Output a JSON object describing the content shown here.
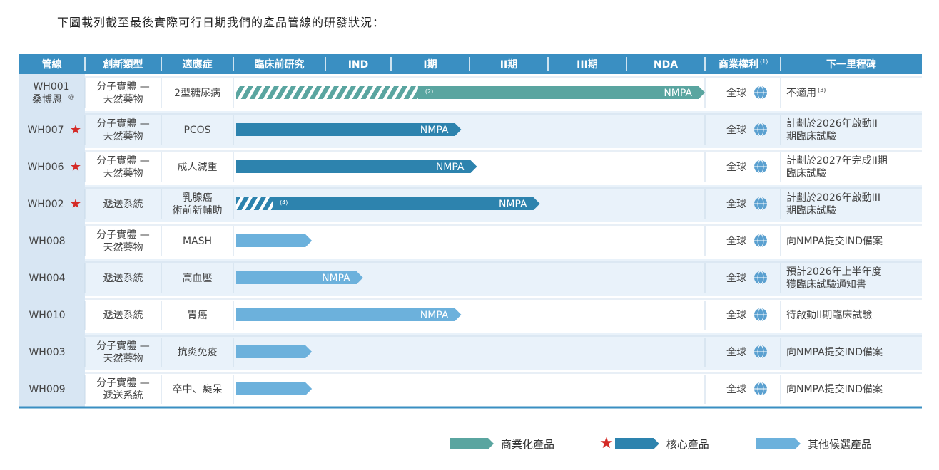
{
  "intro_text": "下圖載列截至最後實際可行日期我們的產品管線的研發狀況：",
  "colors": {
    "header": "#3a8fc2",
    "commercial": "#5aa5a0",
    "core": "#2d83ae",
    "other": "#6cb1dc",
    "rowA": "#ffffff",
    "rowB": "#e9f2fa",
    "leftCol": "#d8e6f3",
    "star": "#d42a26"
  },
  "chart_data": {
    "type": "table",
    "columns": [
      {
        "label": "管線"
      },
      {
        "label": "創新類型"
      },
      {
        "label": "適應症"
      },
      {
        "label": "臨床前研究"
      },
      {
        "label": "IND"
      },
      {
        "label": "I期"
      },
      {
        "label": "II期"
      },
      {
        "label": "III期"
      },
      {
        "label": "NDA"
      },
      {
        "label": "商業權利",
        "sup": "(1)"
      },
      {
        "label": "下一里程碑"
      }
    ],
    "rows": [
      {
        "code": "WH001",
        "code2": "桑博恩",
        "code2_sup": "@",
        "core": false,
        "type": [
          "分子實體 —",
          "天然藥物"
        ],
        "indication": [
          "2型糖尿病"
        ],
        "category": "commercial",
        "progress": 6.0,
        "hatch_end": 2.35,
        "note": "(2)",
        "bar_label": "NMPA",
        "rights": "全球",
        "milestone": [
          "不適用"
        ],
        "milestone_sup": "(3)"
      },
      {
        "code": "WH007",
        "core": true,
        "type": [
          "分子實體 —",
          "天然藥物"
        ],
        "indication": [
          "PCOS"
        ],
        "category": "core",
        "progress": 2.9,
        "bar_label": "NMPA",
        "rights": "全球",
        "milestone": [
          "計劃於2026年啟動II",
          "期臨床試驗"
        ]
      },
      {
        "code": "WH006",
        "core": true,
        "type": [
          "分子實體 —",
          "天然藥物"
        ],
        "indication": [
          "成人減重"
        ],
        "category": "core",
        "progress": 3.1,
        "bar_label": "NMPA",
        "rights": "全球",
        "milestone": [
          "計劃於2027年完成II期",
          "臨床試驗"
        ]
      },
      {
        "code": "WH002",
        "core": true,
        "type": [
          "遞送系統"
        ],
        "indication": [
          "乳腺癌",
          "術前新輔助"
        ],
        "category": "core",
        "progress": 3.9,
        "hatch_end": 0.5,
        "note": "(4)",
        "bar_label": "NMPA",
        "rights": "全球",
        "milestone": [
          "計劃於2026年啟動III",
          "期臨床試驗"
        ]
      },
      {
        "code": "WH008",
        "core": false,
        "type": [
          "分子實體 —",
          "天然藥物"
        ],
        "indication": [
          "MASH"
        ],
        "category": "other",
        "progress": 1.0,
        "bar_label": "",
        "rights": "全球",
        "milestone": [
          "向NMPA提交IND備案"
        ]
      },
      {
        "code": "WH004",
        "core": false,
        "type": [
          "遞送系統"
        ],
        "indication": [
          "高血壓"
        ],
        "category": "other",
        "progress": 1.65,
        "bar_label": "NMPA",
        "rights": "全球",
        "milestone": [
          "預計2026年上半年度",
          "獲臨床試驗通知書"
        ]
      },
      {
        "code": "WH010",
        "core": false,
        "type": [
          "遞送系統"
        ],
        "indication": [
          "胃癌"
        ],
        "category": "other",
        "progress": 2.9,
        "bar_label": "NMPA",
        "rights": "全球",
        "milestone": [
          "待啟動II期臨床試驗"
        ]
      },
      {
        "code": "WH003",
        "core": false,
        "type": [
          "分子實體 —",
          "天然藥物"
        ],
        "indication": [
          "抗炎免疫"
        ],
        "category": "other",
        "progress": 1.0,
        "bar_label": "",
        "rights": "全球",
        "milestone": [
          "向NMPA提交IND備案"
        ]
      },
      {
        "code": "WH009",
        "core": false,
        "type": [
          "分子實體 —",
          "遞送系統"
        ],
        "indication": [
          "卒中、癡呆"
        ],
        "category": "other",
        "progress": 1.0,
        "bar_label": "",
        "rights": "全球",
        "milestone": [
          "向NMPA提交IND備案"
        ]
      }
    ],
    "legend": [
      {
        "label": "商業化產品",
        "category": "commercial"
      },
      {
        "label": "核心產品",
        "category": "core",
        "star": true
      },
      {
        "label": "其他候選產品",
        "category": "other"
      }
    ]
  }
}
